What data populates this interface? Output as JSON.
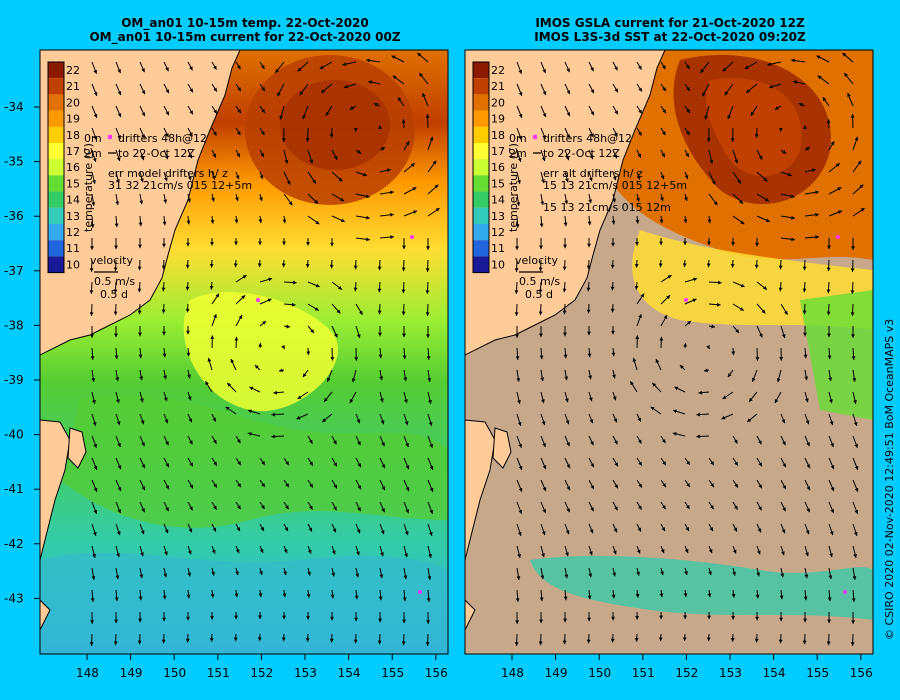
{
  "colors": {
    "background": "#00ccff",
    "land": "#ffcc99",
    "nodata": "#c8a88a",
    "arrow": "#000000",
    "drifter": "#ff33ff"
  },
  "panels": [
    {
      "id": "left",
      "title_line1": "OM_an01 10-15m temp. 22-Oct-2020",
      "title_line2": "OM_an01 10-15m current for 22-Oct-2020 00Z",
      "drifter_line1": "drifters 48h@12",
      "drifter_line2": "to 22-Oct 12Z",
      "err_line1": "err model drifters h/ z",
      "err_line2": "31 32 21cm/s 015 12+5m",
      "err_line3": "",
      "colorbar_label": "temperature (C)"
    },
    {
      "id": "right",
      "title_line1": "IMOS GSLA current for 21-Oct-2020 12Z",
      "title_line2": "IMOS L3S-3d SST at 22-Oct-2020 09:20Z",
      "drifter_line1": "drifters 48h@12",
      "drifter_line2": "to 22-Oct 12Z",
      "err_line1": "err alt drifters h/ z",
      "err_line2": "15 13 21cm/s 015 12+5m",
      "err_line3": "15 13 21cm/s 015 12m",
      "colorbar_label": "temperature (C)"
    }
  ],
  "drifter_prefix": "0m",
  "drifter_depth": "2m",
  "velocity": {
    "label": "velocity",
    "speed": "0.5 m/s",
    "time": "0.5 d"
  },
  "colorbar_ticks": [
    "22",
    "21",
    "20",
    "19",
    "18",
    "17",
    "16",
    "15",
    "14",
    "13",
    "12",
    "11",
    "10"
  ],
  "colorbar_colors": [
    "#8b1a00",
    "#c04000",
    "#e07000",
    "#ff9900",
    "#ffcc00",
    "#ffff33",
    "#ccff33",
    "#66dd33",
    "#33cc66",
    "#33ccbb",
    "#33aaee",
    "#2266dd",
    "#1a1a99"
  ],
  "lat_ticks": [
    "-34",
    "-35",
    "-36",
    "-37",
    "-38",
    "-39",
    "-40",
    "-41",
    "-42",
    "-43"
  ],
  "lon_ticks": [
    "148",
    "149",
    "150",
    "151",
    "152",
    "153",
    "154",
    "155",
    "156"
  ],
  "credit": "© CSIRO 2020   02-Nov-2020 12:49:51 BoM OceanMAPS v3"
}
